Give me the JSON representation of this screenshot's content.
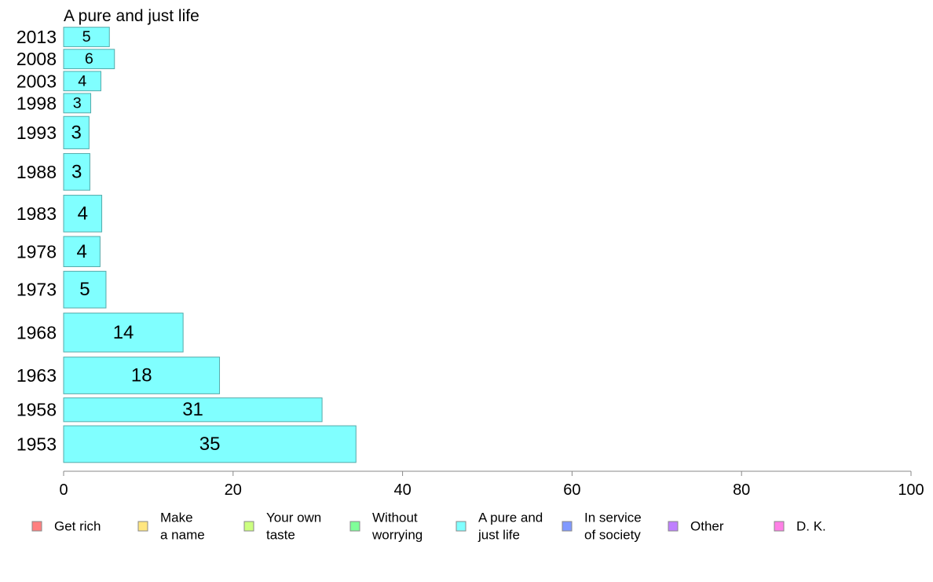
{
  "chart_data": {
    "type": "bar",
    "orientation": "horizontal",
    "title": "A pure and just life",
    "categories": [
      "2013",
      "2008",
      "2003",
      "1998",
      "1993",
      "1988",
      "1983",
      "1978",
      "1973",
      "1968",
      "1963",
      "1958",
      "1953"
    ],
    "values": [
      5.4,
      6.0,
      4.4,
      3.2,
      3.0,
      3.1,
      4.5,
      4.3,
      5.0,
      14.1,
      18.4,
      30.5,
      34.5
    ],
    "value_labels": [
      "5",
      "6",
      "4",
      "3",
      "3",
      "3",
      "4",
      "4",
      "5",
      "14",
      "18",
      "31",
      "35"
    ],
    "relative_band_widths": [
      0.45,
      0.45,
      0.45,
      0.45,
      0.75,
      0.85,
      0.85,
      0.7,
      0.85,
      0.9,
      0.85,
      0.55,
      0.85
    ],
    "xlim": [
      0,
      100
    ],
    "xticks": [
      "0",
      "20",
      "40",
      "60",
      "80",
      "100"
    ],
    "xtick_values": [
      0,
      20,
      40,
      60,
      80,
      100
    ],
    "grid": false,
    "bar_color": "#80ffff",
    "bar_edge_color": "#55aaaa",
    "legend": {
      "placement": "bottom",
      "items": [
        {
          "lines": [
            "Get rich"
          ],
          "color": "#ff8080"
        },
        {
          "lines": [
            "Make",
            "a name"
          ],
          "color": "#ffe680"
        },
        {
          "lines": [
            "Your own",
            "taste"
          ],
          "color": "#ccff80"
        },
        {
          "lines": [
            "Without",
            "worrying"
          ],
          "color": "#80ff99"
        },
        {
          "lines": [
            "A pure and",
            "just life"
          ],
          "color": "#80ffff"
        },
        {
          "lines": [
            "In service",
            "of society"
          ],
          "color": "#8099ff"
        },
        {
          "lines": [
            "Other"
          ],
          "color": "#bf80ff"
        },
        {
          "lines": [
            "D. K."
          ],
          "color": "#ff80e6"
        }
      ]
    }
  }
}
